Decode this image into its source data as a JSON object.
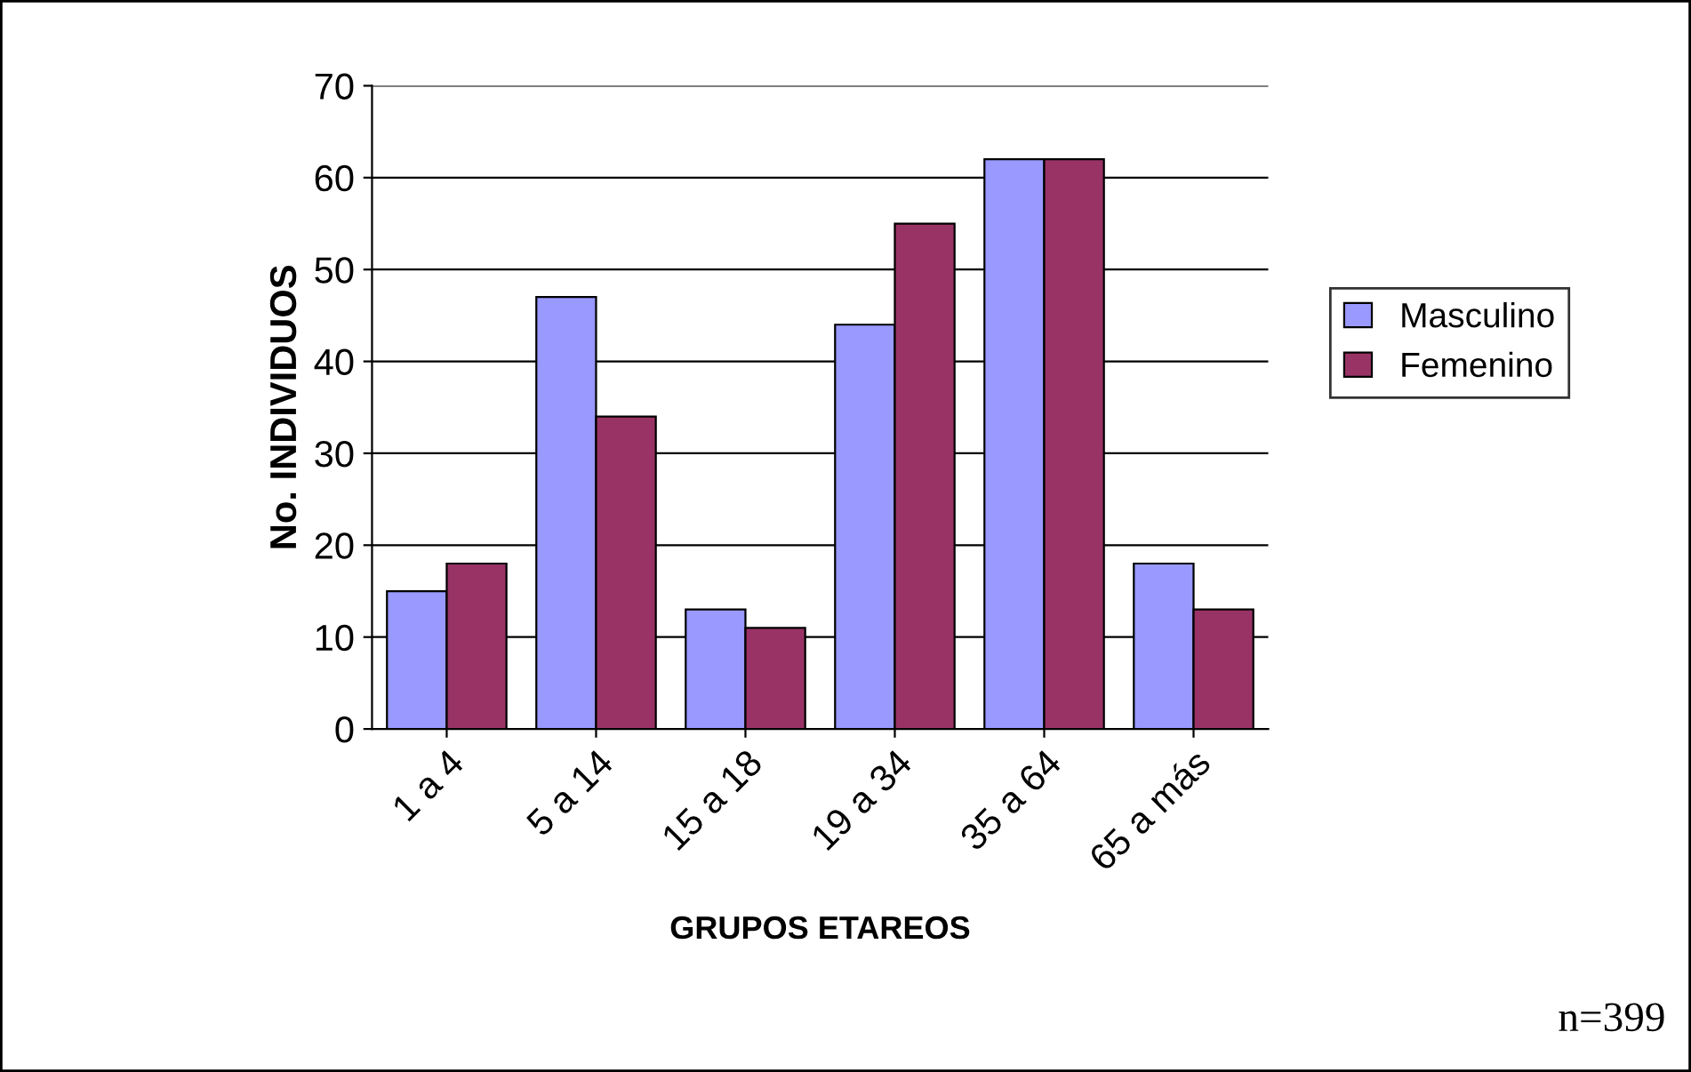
{
  "chart_data": {
    "type": "bar",
    "xlabel": "GRUPOS ETAREOS",
    "ylabel": "No. INDIVIDUOS",
    "categories": [
      "1 a 4",
      "5 a 14",
      "15 a 18",
      "19 a 34",
      "35 a 64",
      "65 a más"
    ],
    "series": [
      {
        "name": "Masculino",
        "color": "#9999ff",
        "values": [
          15,
          47,
          13,
          44,
          62,
          18
        ]
      },
      {
        "name": "Femenino",
        "color": "#993366",
        "values": [
          18,
          34,
          11,
          55,
          62,
          13
        ]
      }
    ],
    "ylim": [
      0,
      70
    ],
    "yticks": [
      0,
      10,
      20,
      30,
      40,
      50,
      60,
      70
    ],
    "grid": "y",
    "legend": "right",
    "annotations": [
      "n=399"
    ]
  }
}
